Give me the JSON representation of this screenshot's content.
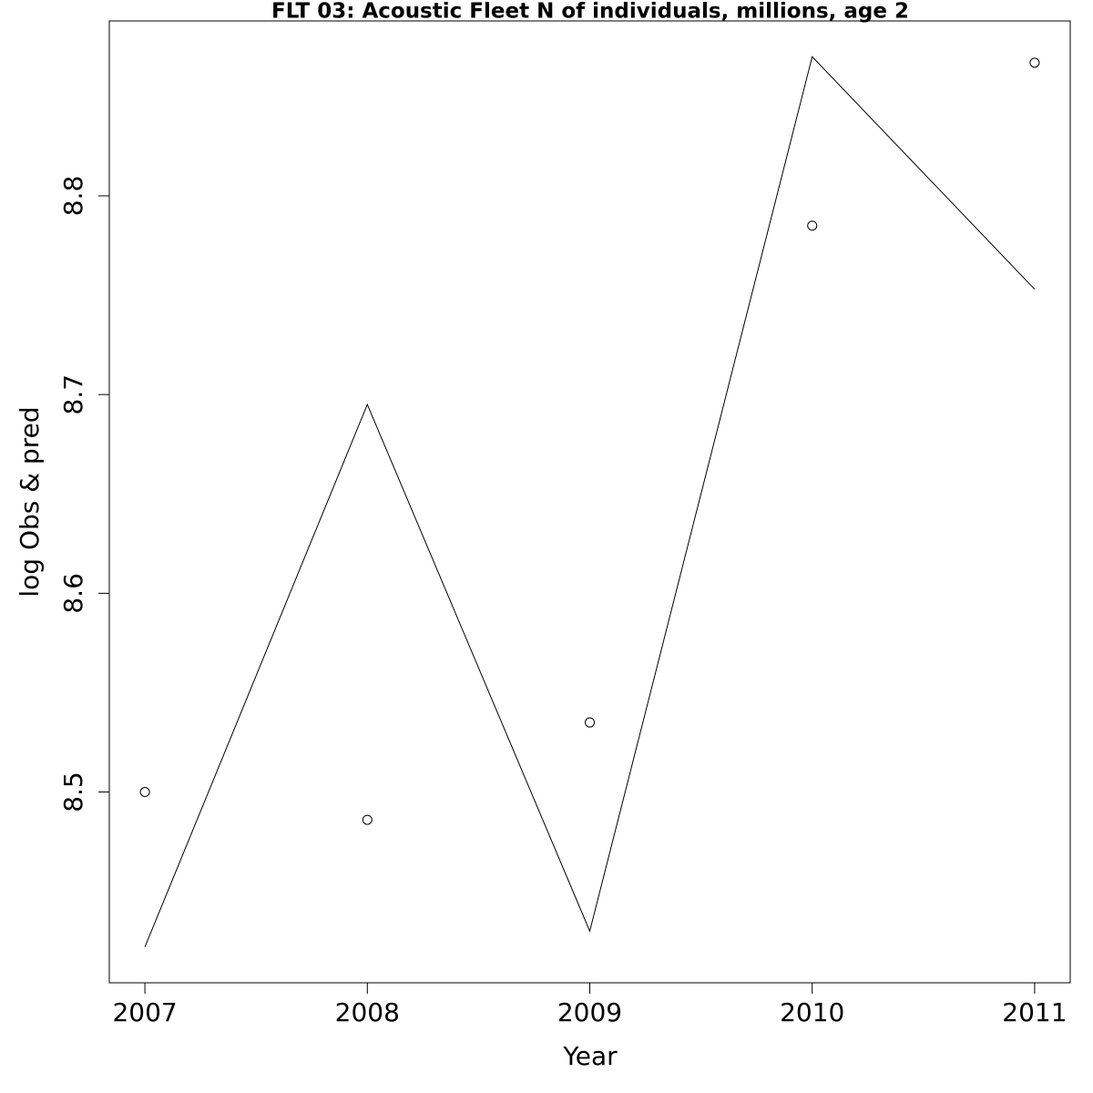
{
  "chart_data": {
    "type": "line",
    "title": "FLT 03: Acoustic Fleet  N of individuals, millions, age 2",
    "x_label": "Year",
    "y_label": "log Obs & pred",
    "x": [
      2007,
      2008,
      2009,
      2010,
      2011
    ],
    "series": [
      {
        "style": "points",
        "color": "#000000",
        "values": [
          8.5,
          8.486,
          8.535,
          8.785,
          8.867
        ]
      },
      {
        "style": "line",
        "color": "#000000",
        "values": [
          8.422,
          8.695,
          8.43,
          8.87,
          8.753
        ]
      }
    ],
    "xlim": [
      2006.84,
      2011.16
    ],
    "xticks": [
      2007,
      2008,
      2009,
      2010,
      2011
    ],
    "ylim": [
      8.404,
      8.888
    ],
    "yticks": [
      8.5,
      8.6,
      8.7,
      8.8
    ]
  }
}
